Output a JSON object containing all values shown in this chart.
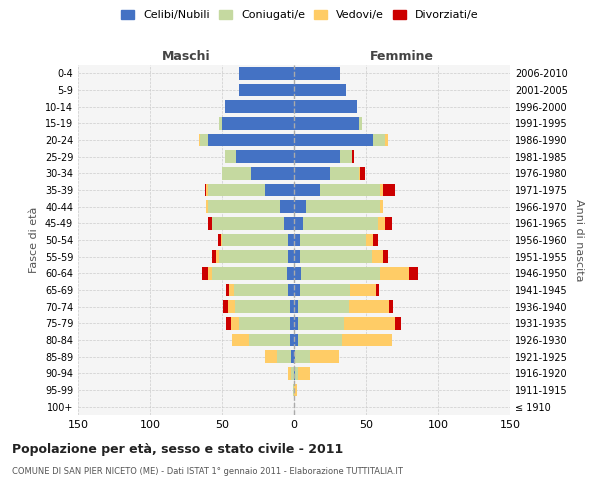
{
  "age_groups": [
    "100+",
    "95-99",
    "90-94",
    "85-89",
    "80-84",
    "75-79",
    "70-74",
    "65-69",
    "60-64",
    "55-59",
    "50-54",
    "45-49",
    "40-44",
    "35-39",
    "30-34",
    "25-29",
    "20-24",
    "15-19",
    "10-14",
    "5-9",
    "0-4"
  ],
  "birth_years": [
    "≤ 1910",
    "1911-1915",
    "1916-1920",
    "1921-1925",
    "1926-1930",
    "1931-1935",
    "1936-1940",
    "1941-1945",
    "1946-1950",
    "1951-1955",
    "1956-1960",
    "1961-1965",
    "1966-1970",
    "1971-1975",
    "1976-1980",
    "1981-1985",
    "1986-1990",
    "1991-1995",
    "1996-2000",
    "2001-2005",
    "2006-2010"
  ],
  "male": {
    "celibi": [
      0,
      0,
      0,
      2,
      3,
      3,
      3,
      4,
      5,
      4,
      4,
      7,
      10,
      20,
      30,
      40,
      60,
      50,
      48,
      38,
      38
    ],
    "coniugati": [
      0,
      1,
      2,
      10,
      28,
      35,
      38,
      38,
      52,
      48,
      46,
      50,
      50,
      40,
      20,
      8,
      5,
      2,
      0,
      0,
      0
    ],
    "vedovi": [
      0,
      0,
      2,
      8,
      12,
      6,
      5,
      3,
      3,
      2,
      1,
      0,
      1,
      1,
      0,
      0,
      1,
      0,
      0,
      0,
      0
    ],
    "divorziati": [
      0,
      0,
      0,
      0,
      0,
      3,
      3,
      2,
      4,
      3,
      2,
      3,
      0,
      1,
      0,
      0,
      0,
      0,
      0,
      0,
      0
    ]
  },
  "female": {
    "nubili": [
      0,
      0,
      1,
      1,
      3,
      3,
      3,
      4,
      5,
      4,
      4,
      6,
      8,
      18,
      25,
      32,
      55,
      45,
      44,
      36,
      32
    ],
    "coniugate": [
      0,
      0,
      2,
      10,
      30,
      32,
      35,
      35,
      55,
      50,
      46,
      52,
      52,
      42,
      20,
      8,
      8,
      2,
      0,
      0,
      0
    ],
    "vedove": [
      0,
      2,
      8,
      20,
      35,
      35,
      28,
      18,
      20,
      8,
      5,
      5,
      2,
      2,
      1,
      0,
      2,
      0,
      0,
      0,
      0
    ],
    "divorziate": [
      0,
      0,
      0,
      0,
      0,
      4,
      3,
      2,
      6,
      3,
      3,
      5,
      0,
      8,
      3,
      2,
      0,
      0,
      0,
      0,
      0
    ]
  },
  "colors": {
    "celibi": "#4472C4",
    "coniugati": "#C5D9A0",
    "vedovi": "#FFCC66",
    "divorziati": "#CC0000"
  },
  "title": "Popolazione per età, sesso e stato civile - 2011",
  "subtitle": "COMUNE DI SAN PIER NICETO (ME) - Dati ISTAT 1° gennaio 2011 - Elaborazione TUTTITALIA.IT",
  "xlabel_left": "Maschi",
  "xlabel_right": "Femmine",
  "ylabel_left": "Fasce di età",
  "ylabel_right": "Anni di nascita",
  "legend_labels": [
    "Celibi/Nubili",
    "Coniugati/e",
    "Vedovi/e",
    "Divorziati/e"
  ],
  "xlim": 150,
  "background_color": "#ffffff",
  "plot_bg_color": "#f5f5f5",
  "grid_color": "#cccccc"
}
